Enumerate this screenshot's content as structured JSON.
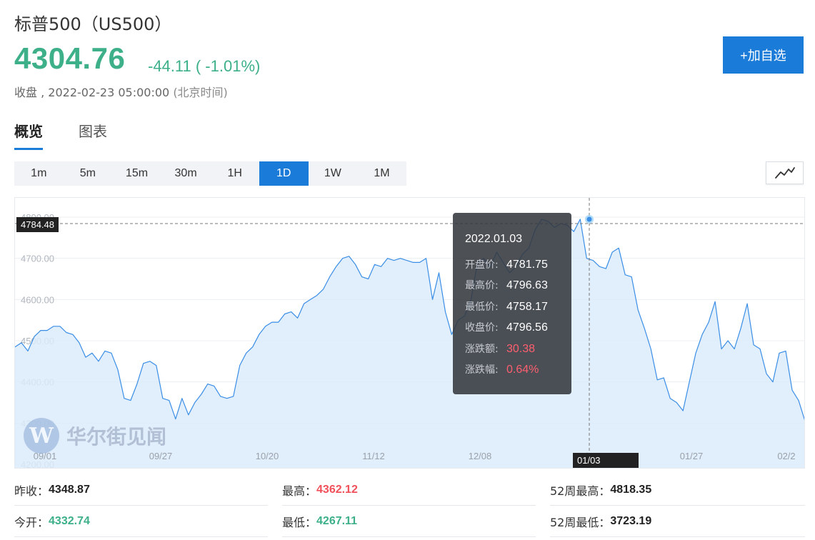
{
  "header": {
    "title": "标普500（US500）",
    "price": "4304.76",
    "change": "-44.11 ( -1.01%)",
    "status_label": "收盘 ,",
    "timestamp": "2022-02-23 05:00:00",
    "timezone": "(北京时间)",
    "add_button": "+加自选"
  },
  "colors": {
    "accent": "#1a7bd8",
    "down": "#3db08a",
    "up": "#f0505a",
    "area": "#dcebfa",
    "line": "#3a8ee6"
  },
  "tabs": [
    {
      "label": "概览",
      "active": true
    },
    {
      "label": "图表",
      "active": false
    }
  ],
  "intervals": [
    {
      "label": "1m"
    },
    {
      "label": "5m"
    },
    {
      "label": "15m"
    },
    {
      "label": "30m"
    },
    {
      "label": "1H"
    },
    {
      "label": "1D",
      "active": true
    },
    {
      "label": "1W"
    },
    {
      "label": "1M"
    }
  ],
  "chart_type_icon": "line-chart-icon",
  "crosshair": {
    "y_label": "4784.48",
    "x_label": "01/03"
  },
  "tooltip": {
    "date": "2022.01.03",
    "rows": [
      {
        "label": "开盘价:",
        "value": "4781.75"
      },
      {
        "label": "最高价:",
        "value": "4796.63"
      },
      {
        "label": "最低价:",
        "value": "4758.17"
      },
      {
        "label": "收盘价:",
        "value": "4796.56"
      },
      {
        "label": "涨跌额:",
        "value": "30.38"
      },
      {
        "label": "涨跌幅:",
        "value": "0.64%"
      }
    ]
  },
  "watermark": {
    "logo": "W",
    "text": "华尔街见闻"
  },
  "stats": {
    "prev_close_label": "昨收：",
    "prev_close": "4348.87",
    "high_label": "最高：",
    "high": "4362.12",
    "high52_label": "52周最高：",
    "high52": "4818.35",
    "open_label": "今开：",
    "open": "4332.74",
    "low_label": "最低：",
    "low": "4267.11",
    "low52_label": "52周最低：",
    "low52": "3723.19"
  },
  "chart_data": {
    "type": "area",
    "ylim": [
      4200,
      4800
    ],
    "y_ticks": [
      "4800.00",
      "4700.00",
      "4600.00",
      "4500.00",
      "4400.00",
      "4300.00",
      "4200.00"
    ],
    "x_ticks": [
      "09/01",
      "09/27",
      "10/20",
      "11/12",
      "12/08",
      "01/03",
      "01/27",
      "02/2"
    ],
    "series": [
      {
        "values": [
          4485,
          4495,
          4475,
          4510,
          4525,
          4525,
          4535,
          4535,
          4520,
          4515,
          4495,
          4460,
          4470,
          4450,
          4475,
          4470,
          4430,
          4360,
          4355,
          4395,
          4445,
          4450,
          4440,
          4360,
          4355,
          4310,
          4360,
          4320,
          4350,
          4370,
          4395,
          4390,
          4365,
          4360,
          4365,
          4440,
          4470,
          4485,
          4515,
          4535,
          4545,
          4545,
          4565,
          4570,
          4555,
          4590,
          4600,
          4610,
          4625,
          4655,
          4680,
          4700,
          4705,
          4685,
          4655,
          4650,
          4685,
          4680,
          4700,
          4695,
          4700,
          4695,
          4690,
          4690,
          4700,
          4600,
          4665,
          4570,
          4515,
          4550,
          4560,
          4600,
          4690,
          4700,
          4680,
          4715,
          4690,
          4665,
          4680,
          4710,
          4725,
          4770,
          4795,
          4790,
          4775,
          4785,
          4780,
          4765,
          4795,
          4700,
          4695,
          4680,
          4675,
          4715,
          4725,
          4660,
          4655,
          4575,
          4530,
          4480,
          4405,
          4410,
          4360,
          4350,
          4330,
          4400,
          4470,
          4515,
          4545,
          4595,
          4480,
          4500,
          4480,
          4530,
          4590,
          4490,
          4480,
          4420,
          4400,
          4470,
          4475,
          4380,
          4355,
          4305
        ]
      }
    ]
  }
}
